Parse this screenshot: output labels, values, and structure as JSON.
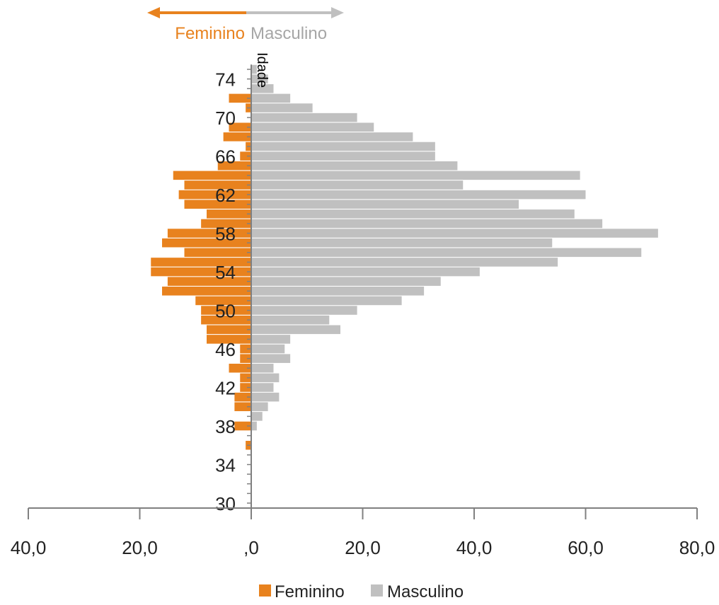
{
  "direction_labels": {
    "female": "Feminino",
    "male": "Masculino"
  },
  "colors": {
    "female": "#E8821E",
    "male": "#C0C0C0",
    "axis": "#808080",
    "text": "#222222"
  },
  "chart_data": {
    "type": "bar",
    "orientation": "horizontal",
    "subtype": "population pyramid",
    "ylabel": "Idade",
    "xlabel": "",
    "xlim": [
      -40,
      80
    ],
    "x_ticks": [
      -40,
      -20,
      0,
      20,
      40,
      60,
      80
    ],
    "x_tick_labels": [
      "40,0",
      "20,0",
      ",0",
      "20,0",
      "40,0",
      "60,0",
      "80,0"
    ],
    "ylim": [
      30,
      75
    ],
    "y_tick_labels": [
      30,
      34,
      38,
      42,
      46,
      50,
      54,
      58,
      62,
      66,
      70,
      74
    ],
    "ages": [
      30,
      31,
      32,
      33,
      34,
      35,
      36,
      37,
      38,
      39,
      40,
      41,
      42,
      43,
      44,
      45,
      46,
      47,
      48,
      49,
      50,
      51,
      52,
      53,
      54,
      55,
      56,
      57,
      58,
      59,
      60,
      61,
      62,
      63,
      64,
      65,
      66,
      67,
      68,
      69,
      70,
      71,
      72,
      73,
      74,
      75
    ],
    "legend": {
      "position": "bottom",
      "entries": [
        "Feminino",
        "Masculino"
      ]
    },
    "series": [
      {
        "name": "Feminino",
        "values": [
          0,
          0,
          0,
          0,
          0,
          0,
          1,
          0,
          3,
          0,
          3,
          3,
          2,
          2,
          4,
          2,
          2,
          8,
          8,
          9,
          9,
          10,
          16,
          15,
          18,
          18,
          12,
          16,
          15,
          9,
          8,
          12,
          13,
          12,
          14,
          6,
          2,
          1,
          5,
          4,
          0,
          1,
          4,
          0,
          0,
          0
        ]
      },
      {
        "name": "Masculino",
        "values": [
          0,
          0,
          0,
          0,
          0,
          0,
          0,
          0,
          1,
          2,
          3,
          5,
          4,
          5,
          4,
          7,
          6,
          7,
          16,
          14,
          19,
          27,
          31,
          34,
          41,
          55,
          70,
          54,
          73,
          63,
          58,
          48,
          60,
          38,
          59,
          37,
          33,
          33,
          29,
          22,
          19,
          11,
          7,
          4,
          3,
          1
        ]
      }
    ]
  }
}
